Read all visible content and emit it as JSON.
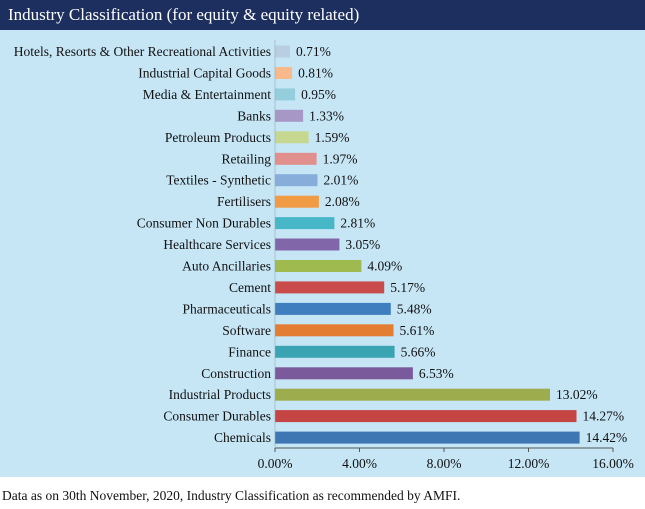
{
  "header": {
    "title": "Industry Classification (for equity & equity related)"
  },
  "footnote": "Data as on 30th November, 2020, Industry Classification as recommended by AMFI.",
  "chart_data": {
    "type": "bar",
    "orientation": "horizontal",
    "title": "Industry Classification (for equity & equity related)",
    "xlim": [
      0,
      16
    ],
    "ticks": [
      "0.00%",
      "4.00%",
      "8.00%",
      "12.00%",
      "16.00%"
    ],
    "tick_values": [
      0,
      4,
      8,
      12,
      16
    ],
    "grid": false,
    "categories": [
      "Hotels, Resorts & Other Recreational Activities",
      "Industrial Capital Goods",
      "Media & Entertainment",
      "Banks",
      "Petroleum Products",
      "Retailing",
      "Textiles - Synthetic",
      "Fertilisers",
      "Consumer Non Durables",
      "Healthcare Services",
      "Auto Ancillaries",
      "Cement",
      "Pharmaceuticals",
      "Software",
      "Finance",
      "Construction",
      "Industrial Products",
      "Consumer Durables",
      "Chemicals"
    ],
    "values": [
      0.71,
      0.81,
      0.95,
      1.33,
      1.59,
      1.97,
      2.01,
      2.08,
      2.81,
      3.05,
      4.09,
      5.17,
      5.48,
      5.61,
      5.66,
      6.53,
      13.02,
      14.27,
      14.42
    ],
    "value_labels": [
      "0.71%",
      "0.81%",
      "0.95%",
      "1.33%",
      "1.59%",
      "1.97%",
      "2.01%",
      "2.08%",
      "2.81%",
      "3.05%",
      "4.09%",
      "5.17%",
      "5.48%",
      "5.61%",
      "5.66%",
      "6.53%",
      "13.02%",
      "14.27%",
      "14.42%"
    ],
    "colors": [
      "#b9cde3",
      "#f9b98a",
      "#94cddc",
      "#a797c7",
      "#c6d790",
      "#e08f8d",
      "#87aedb",
      "#f29b45",
      "#47b7c8",
      "#8166a9",
      "#9fbb4f",
      "#c94b4b",
      "#3f7fbf",
      "#e37d33",
      "#3ba4b3",
      "#7a5a9a",
      "#9dac4c",
      "#c54444",
      "#3e75b3"
    ]
  }
}
